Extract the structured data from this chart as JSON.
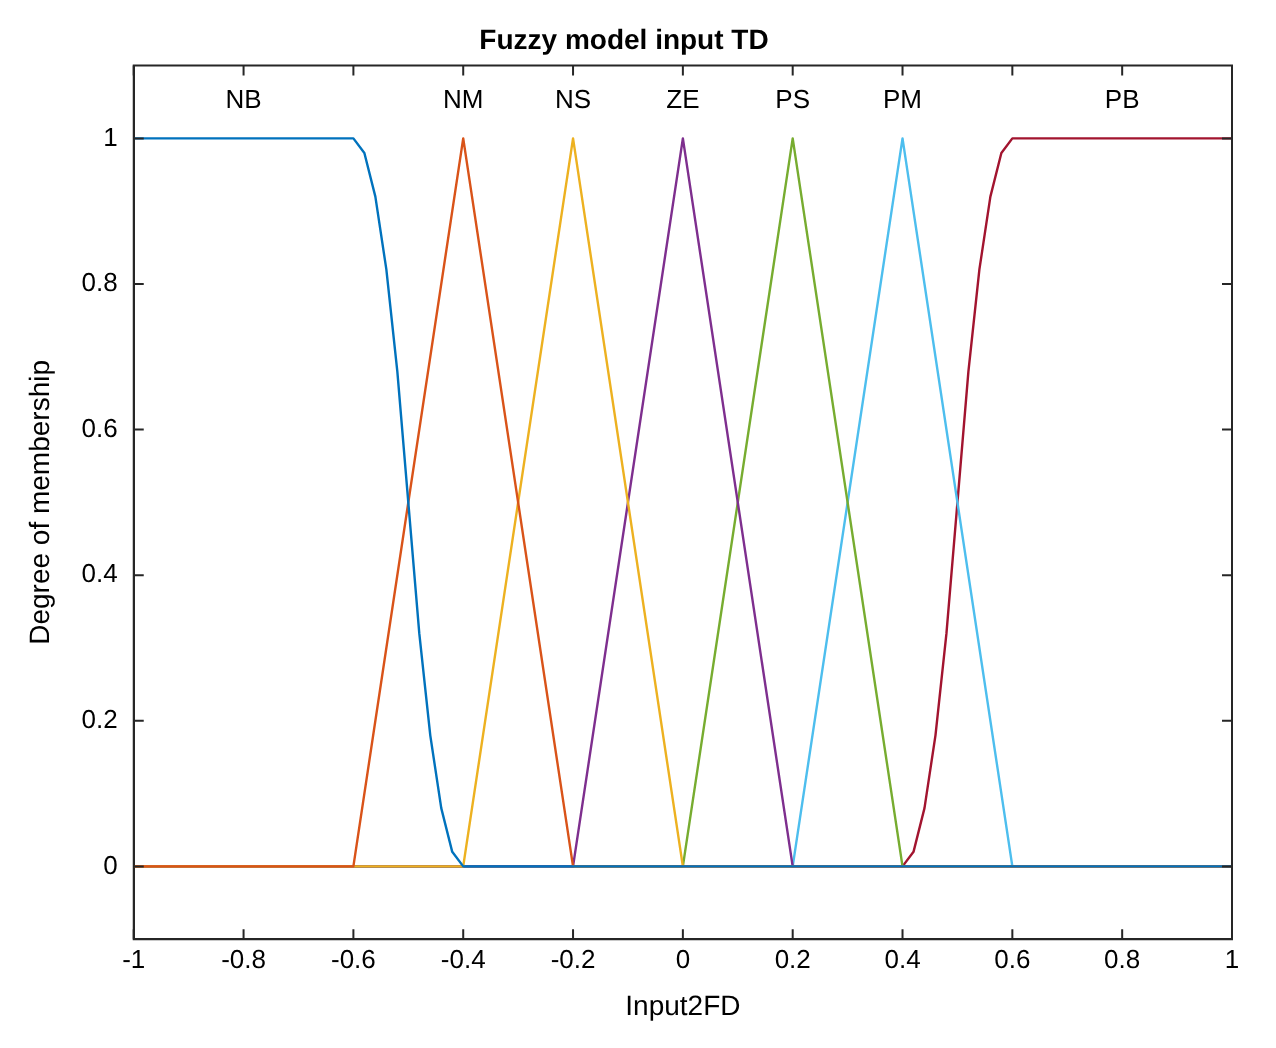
{
  "chart_data": {
    "type": "line",
    "title": "Fuzzy model input TD",
    "xlabel": "Input2FD",
    "ylabel": "Degree of membership",
    "xlim": [
      -1,
      1
    ],
    "xticks": [
      -1,
      -0.8,
      -0.6,
      -0.4,
      -0.2,
      0,
      0.2,
      0.4,
      0.6,
      0.8,
      1
    ],
    "ylim": [
      -0.1,
      1.1
    ],
    "yticks": [
      0,
      0.2,
      0.4,
      0.6,
      0.8,
      1
    ],
    "grid": false,
    "legend": false,
    "marker": "none",
    "line_style": "solid",
    "series": [
      {
        "name": "NB",
        "color": "#0072bd",
        "x": [
          -1,
          -0.6,
          -0.58,
          -0.56,
          -0.54,
          -0.52,
          -0.5,
          -0.48,
          -0.46,
          -0.44,
          -0.42,
          -0.4,
          1
        ],
        "values": [
          1,
          1,
          0.98,
          0.92,
          0.82,
          0.68,
          0.5,
          0.32,
          0.18,
          0.08,
          0.02,
          0,
          0
        ]
      },
      {
        "name": "NM",
        "color": "#d95319",
        "x": [
          -1,
          -0.6,
          -0.4,
          -0.2,
          1
        ],
        "values": [
          0,
          0,
          1,
          0,
          0
        ]
      },
      {
        "name": "NS",
        "color": "#edb120",
        "x": [
          -1,
          -0.4,
          -0.2,
          0,
          1
        ],
        "values": [
          0,
          0,
          1,
          0,
          0
        ]
      },
      {
        "name": "ZE",
        "color": "#7e2f8e",
        "x": [
          -1,
          -0.2,
          0,
          0.2,
          1
        ],
        "values": [
          0,
          0,
          1,
          0,
          0
        ]
      },
      {
        "name": "PS",
        "color": "#77ac30",
        "x": [
          -1,
          0,
          0.2,
          0.4,
          1
        ],
        "values": [
          0,
          0,
          1,
          0,
          0
        ]
      },
      {
        "name": "PM",
        "color": "#4dbeee",
        "x": [
          -1,
          0.2,
          0.4,
          0.6,
          1
        ],
        "values": [
          0,
          0,
          1,
          0,
          0
        ]
      },
      {
        "name": "PB",
        "color": "#a2142f",
        "x": [
          -1,
          0.4,
          0.42,
          0.44,
          0.46,
          0.48,
          0.5,
          0.52,
          0.54,
          0.56,
          0.58,
          0.6,
          1
        ],
        "values": [
          0,
          0,
          0.02,
          0.08,
          0.18,
          0.32,
          0.5,
          0.68,
          0.82,
          0.92,
          0.98,
          1,
          1
        ]
      }
    ]
  }
}
